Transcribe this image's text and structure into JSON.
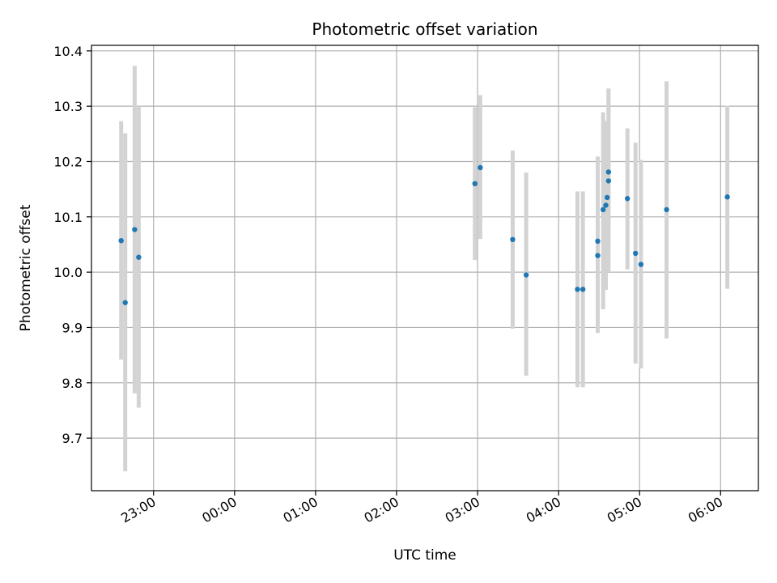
{
  "chart_data": {
    "type": "scatter",
    "title": "Photometric offset variation",
    "xlabel": "UTC time",
    "ylabel": "Photometric offset",
    "x_unit": "UTC time (HH:MM)",
    "xlim": [
      "22:14",
      "06:28"
    ],
    "ylim": [
      9.605,
      10.41
    ],
    "x_ticks": [
      "23:00",
      "00:00",
      "01:00",
      "02:00",
      "03:00",
      "04:00",
      "05:00",
      "06:00"
    ],
    "y_ticks": [
      9.7,
      9.8,
      9.9,
      10.0,
      10.1,
      10.2,
      10.3,
      10.4
    ],
    "y_tick_labels": [
      "9.7",
      "9.8",
      "9.9",
      "10.0",
      "10.1",
      "10.2",
      "10.3",
      "10.4"
    ],
    "grid": true,
    "point_color": "#1f77b4",
    "errorbar_color": "#d3d3d3",
    "series": [
      {
        "points": [
          {
            "x": "22:36",
            "y": 10.057,
            "ylow": 9.842,
            "yhigh": 10.273
          },
          {
            "x": "22:39",
            "y": 9.945,
            "ylow": 9.64,
            "yhigh": 10.251
          },
          {
            "x": "22:46",
            "y": 10.077,
            "ylow": 9.781,
            "yhigh": 10.373
          },
          {
            "x": "22:49",
            "y": 10.027,
            "ylow": 9.755,
            "yhigh": 10.3
          },
          {
            "x": "02:58",
            "y": 10.16,
            "ylow": 10.022,
            "yhigh": 10.298
          },
          {
            "x": "03:02",
            "y": 10.189,
            "ylow": 10.06,
            "yhigh": 10.32
          },
          {
            "x": "03:26",
            "y": 10.059,
            "ylow": 9.898,
            "yhigh": 10.22
          },
          {
            "x": "03:36",
            "y": 9.995,
            "ylow": 9.813,
            "yhigh": 10.18
          },
          {
            "x": "04:14",
            "y": 9.969,
            "ylow": 9.792,
            "yhigh": 10.146
          },
          {
            "x": "04:18",
            "y": 9.969,
            "ylow": 9.792,
            "yhigh": 10.146
          },
          {
            "x": "04:29",
            "y": 10.056,
            "ylow": 9.902,
            "yhigh": 10.209
          },
          {
            "x": "04:29",
            "y": 10.03,
            "ylow": 9.89,
            "yhigh": 10.17
          },
          {
            "x": "04:33",
            "y": 10.113,
            "ylow": 9.933,
            "yhigh": 10.289
          },
          {
            "x": "04:35",
            "y": 10.121,
            "ylow": 9.968,
            "yhigh": 10.273
          },
          {
            "x": "04:36",
            "y": 10.135,
            "ylow": 10.032,
            "yhigh": 10.239
          },
          {
            "x": "04:37",
            "y": 10.181,
            "ylow": 10.03,
            "yhigh": 10.332
          },
          {
            "x": "04:37",
            "y": 10.165,
            "ylow": 10.0,
            "yhigh": 10.33
          },
          {
            "x": "04:51",
            "y": 10.133,
            "ylow": 10.005,
            "yhigh": 10.26
          },
          {
            "x": "04:57",
            "y": 10.034,
            "ylow": 9.835,
            "yhigh": 10.234
          },
          {
            "x": "05:01",
            "y": 10.014,
            "ylow": 9.826,
            "yhigh": 10.203
          },
          {
            "x": "05:20",
            "y": 10.113,
            "ylow": 9.88,
            "yhigh": 10.345
          },
          {
            "x": "06:05",
            "y": 10.136,
            "ylow": 9.97,
            "yhigh": 10.301
          }
        ]
      }
    ]
  }
}
